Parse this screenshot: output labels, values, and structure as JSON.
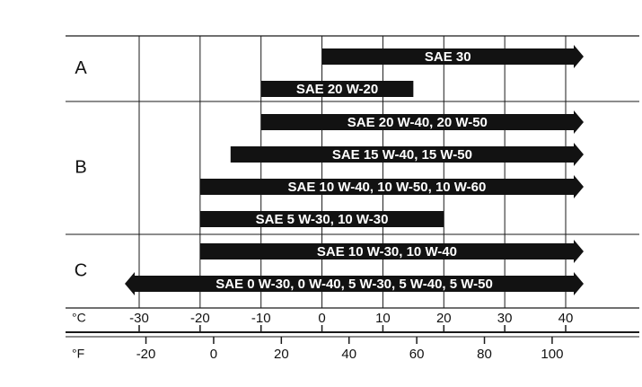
{
  "chart_data": {
    "type": "bar",
    "orientation": "horizontal-range",
    "x_unit_primary": "°C",
    "x_unit_secondary": "°F",
    "xlim_c": [
      -30,
      40
    ],
    "ticks_c": [
      -30,
      -20,
      -10,
      0,
      10,
      20,
      30,
      40
    ],
    "ticks_f": [
      -20,
      0,
      20,
      40,
      60,
      80,
      100
    ],
    "grid": true,
    "groups": [
      {
        "label": "A",
        "bars": [
          {
            "label": "SAE 30",
            "from_c": 0,
            "to_c": 40,
            "open_low": false,
            "open_high": true
          },
          {
            "label": "SAE 20 W-20",
            "from_c": -10,
            "to_c": 15,
            "open_low": false,
            "open_high": false
          }
        ]
      },
      {
        "label": "B",
        "bars": [
          {
            "label": "SAE 20 W-40, 20 W-50",
            "from_c": -10,
            "to_c": 40,
            "open_low": false,
            "open_high": true
          },
          {
            "label": "SAE 15 W-40, 15 W-50",
            "from_c": -15,
            "to_c": 40,
            "open_low": false,
            "open_high": true
          },
          {
            "label": "SAE 10 W-40, 10 W-50, 10 W-60",
            "from_c": -20,
            "to_c": 40,
            "open_low": false,
            "open_high": true
          },
          {
            "label": "SAE 5 W-30, 10 W-30",
            "from_c": -20,
            "to_c": 20,
            "open_low": false,
            "open_high": false
          }
        ]
      },
      {
        "label": "C",
        "bars": [
          {
            "label": "SAE 10 W-30, 10 W-40",
            "from_c": -20,
            "to_c": 40,
            "open_low": false,
            "open_high": true
          },
          {
            "label": "SAE 0 W-30, 0 W-40, 5 W-30, 5 W-40, 5 W-50",
            "from_c": -30,
            "to_c": 40,
            "open_low": true,
            "open_high": true
          }
        ]
      }
    ]
  }
}
